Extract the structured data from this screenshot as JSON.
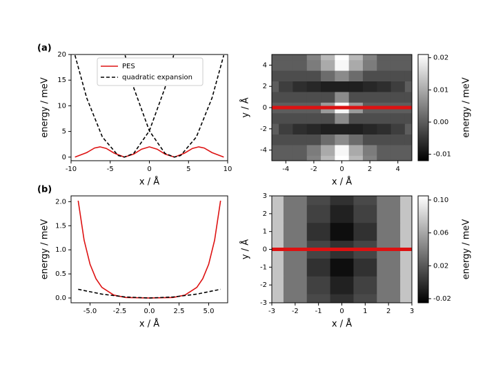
{
  "chart_data": [
    {
      "type": "line",
      "panel_label": "(a)",
      "xlabel": "x / Å",
      "ylabel": "energy / meV",
      "xlim": [
        -10,
        10
      ],
      "xticks": [
        -10,
        -5,
        0,
        5,
        10
      ],
      "ylim": [
        -0.7,
        20
      ],
      "yticks": [
        0,
        5,
        10,
        15,
        20
      ],
      "legend": "upper center",
      "series": [
        {
          "name": "PES",
          "color": "#dd1111",
          "dash": false,
          "x": [
            -9.5,
            -8,
            -7,
            -6.3,
            -5.5,
            -4.5,
            -3.2,
            -2,
            -1,
            0,
            1,
            2,
            3.2,
            4.5,
            5.5,
            6.3,
            7,
            8,
            9.5
          ],
          "values": [
            0,
            0.88,
            1.77,
            2,
            1.69,
            0.78,
            0,
            0.59,
            1.54,
            2,
            1.54,
            0.59,
            0,
            0.78,
            1.69,
            2,
            1.77,
            0.88,
            0
          ]
        },
        {
          "name": "quadratic expansion",
          "color": "#000000",
          "dash": true,
          "x": [
            -9.5,
            -8,
            -6,
            -4,
            -3.2,
            -2,
            0,
            2,
            3.1,
            null,
            -3.1,
            -2,
            0,
            2,
            3.2,
            4,
            6,
            8,
            9.5
          ],
          "values": [
            19.85,
            11.52,
            3.92,
            0.32,
            0,
            0.72,
            5.12,
            13.52,
            19.85,
            null,
            19.85,
            13.52,
            5.12,
            0.72,
            0,
            0.32,
            3.92,
            11.52,
            19.85
          ]
        }
      ]
    },
    {
      "type": "contour",
      "xlabel": "x / Å",
      "ylabel": "y / Å",
      "xlim": [
        -5,
        5
      ],
      "xticks": [
        -4,
        -2,
        0,
        2,
        4
      ],
      "ylim": [
        -5,
        5
      ],
      "yticks": [
        -4,
        -2,
        0,
        2,
        4
      ],
      "colormap": "gray",
      "colorbar": {
        "label": "energy / meV",
        "lim": [
          -0.012,
          0.021
        ],
        "ticks": [
          -0.01,
          {
            "value": 0,
            "label": "0.00"
          },
          0.01,
          0.02
        ]
      },
      "hline": {
        "y": 0,
        "color": "#dd1111"
      },
      "x": [
        -5,
        -4,
        -3,
        -2,
        -1,
        0,
        1,
        2,
        3,
        4,
        5
      ],
      "y": [
        -5,
        -4,
        -3,
        -2,
        -1,
        0,
        1,
        2,
        3,
        4,
        5
      ],
      "z": [
        [
          0,
          0,
          0,
          0.005,
          0.012,
          0.021,
          0.012,
          0.005,
          0,
          0,
          0
        ],
        [
          0,
          0,
          0,
          0.004,
          0.01,
          0.02,
          0.01,
          0.004,
          0,
          0,
          0
        ],
        [
          -0.002,
          -0.002,
          -0.002,
          -0.002,
          0.002,
          0.006,
          0.002,
          -0.002,
          -0.002,
          -0.002,
          -0.002
        ],
        [
          0,
          -0.004,
          -0.006,
          -0.007,
          -0.008,
          -0.008,
          -0.008,
          -0.007,
          -0.006,
          -0.004,
          0
        ],
        [
          -0.002,
          -0.002,
          -0.002,
          -0.002,
          -0.002,
          0.006,
          -0.002,
          -0.002,
          -0.002,
          -0.002,
          -0.002
        ],
        [
          0,
          0,
          0,
          0,
          0.008,
          0.02,
          0.008,
          0,
          0,
          0,
          0
        ],
        [
          -0.002,
          -0.002,
          -0.002,
          -0.002,
          -0.002,
          0.006,
          -0.002,
          -0.002,
          -0.002,
          -0.002,
          -0.002
        ],
        [
          0,
          -0.004,
          -0.006,
          -0.007,
          -0.008,
          -0.008,
          -0.008,
          -0.007,
          -0.006,
          -0.004,
          0
        ],
        [
          -0.002,
          -0.002,
          -0.002,
          -0.002,
          0.002,
          0.006,
          0.002,
          -0.002,
          -0.002,
          -0.002,
          -0.002
        ],
        [
          0,
          0,
          0,
          0.004,
          0.01,
          0.02,
          0.01,
          0.004,
          0,
          0,
          0
        ],
        [
          0,
          0,
          0,
          0.005,
          0.012,
          0.021,
          0.012,
          0.005,
          0,
          0,
          0
        ]
      ]
    },
    {
      "type": "line",
      "panel_label": "(b)",
      "xlabel": "x / Å",
      "ylabel": "energy / meV",
      "xlim": [
        -6.6,
        6.6
      ],
      "xticks": [
        {
          "value": -5,
          "label": "-5.0"
        },
        {
          "value": -2.5,
          "label": "-2.5"
        },
        {
          "value": 0,
          "label": "0.0"
        },
        {
          "value": 2.5,
          "label": "2.5"
        },
        {
          "value": 5,
          "label": "5.0"
        }
      ],
      "ylim": [
        -0.1,
        2.12
      ],
      "yticks": [
        {
          "value": 0,
          "label": "0.0"
        },
        0.5,
        {
          "value": 1,
          "label": "1.0"
        },
        1.5,
        {
          "value": 2,
          "label": "2.0"
        }
      ],
      "series": [
        {
          "color": "#dd1111",
          "dash": false,
          "x": [
            -6,
            -5.5,
            -5,
            -4.5,
            -4,
            -3,
            -2,
            0,
            2,
            3,
            4,
            4.5,
            5,
            5.5,
            6
          ],
          "values": [
            2.02,
            1.2,
            0.7,
            0.4,
            0.22,
            0.06,
            0.01,
            0,
            0.01,
            0.06,
            0.22,
            0.4,
            0.7,
            1.2,
            2.02
          ]
        },
        {
          "color": "#000000",
          "dash": true,
          "x": [
            -6,
            -4,
            -2,
            0,
            2,
            4,
            6
          ],
          "values": [
            0.18,
            0.08,
            0.02,
            0,
            0.02,
            0.08,
            0.18
          ]
        }
      ]
    },
    {
      "type": "contour",
      "xlabel": "x / Å",
      "ylabel": "y / Å",
      "xlim": [
        -3,
        3
      ],
      "xticks": [
        -3,
        -2,
        -1,
        0,
        1,
        2,
        3
      ],
      "ylim": [
        -3,
        3
      ],
      "yticks": [
        -3,
        -2,
        -1,
        0,
        1,
        2,
        3
      ],
      "colormap": "gray",
      "colorbar": {
        "label": "energy / meV",
        "lim": [
          -0.025,
          0.105
        ],
        "ticks": [
          -0.02,
          0.02,
          0.06,
          {
            "value": 0.1,
            "label": "0.10"
          }
        ]
      },
      "hline": {
        "y": 0,
        "color": "#dd1111"
      },
      "x": [
        -3,
        -2,
        -1,
        0,
        1,
        2,
        3
      ],
      "y": [
        -3,
        -2,
        -1,
        0,
        1,
        2,
        3
      ],
      "z": [
        [
          0.075,
          0.035,
          0.012,
          0,
          0.012,
          0.035,
          0.075
        ],
        [
          0.075,
          0.035,
          0.008,
          -0.008,
          0.008,
          0.035,
          0.075
        ],
        [
          0.075,
          0.035,
          0,
          -0.018,
          0,
          0.035,
          0.075
        ],
        [
          0.075,
          0.035,
          0.01,
          0,
          0.01,
          0.035,
          0.075
        ],
        [
          0.075,
          0.035,
          0,
          -0.018,
          0,
          0.035,
          0.075
        ],
        [
          0.075,
          0.035,
          0.008,
          -0.008,
          0.008,
          0.035,
          0.075
        ],
        [
          0.075,
          0.035,
          0.012,
          0,
          0.012,
          0.035,
          0.075
        ]
      ]
    }
  ]
}
